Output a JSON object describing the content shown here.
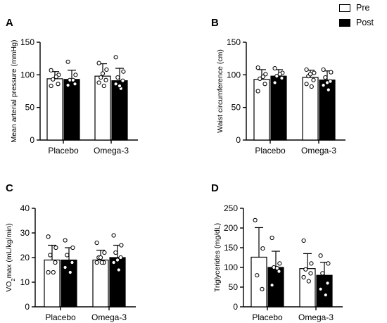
{
  "legend": {
    "pre": {
      "label": "Pre",
      "color": "#ffffff"
    },
    "post": {
      "label": "Post",
      "color": "#000000"
    }
  },
  "chart_data": [
    {
      "panel": "A",
      "type": "bar",
      "ylabel": "Mean arterial pressure (mmHg)",
      "ylim": [
        0,
        150
      ],
      "yticks": [
        0,
        50,
        100,
        150
      ],
      "categories": [
        "Placebo",
        "Omega-3"
      ],
      "series": [
        {
          "name": "Pre",
          "values": [
            94,
            98
          ],
          "sd": [
            11,
            19
          ],
          "points": [
            [
              107,
              100,
              93,
              86,
              83,
              97
            ],
            [
              118,
              108,
              96,
              92,
              88,
              83,
              102
            ]
          ]
        },
        {
          "name": "Post",
          "values": [
            93,
            91
          ],
          "sd": [
            14,
            19
          ],
          "points": [
            [
              120,
              100,
              92,
              86,
              84,
              92
            ],
            [
              127,
              105,
              96,
              91,
              86,
              79,
              83
            ]
          ]
        }
      ]
    },
    {
      "panel": "B",
      "type": "bar",
      "ylabel": "Waist circumference (cm)",
      "ylim": [
        0,
        150
      ],
      "yticks": [
        0,
        50,
        100,
        150
      ],
      "categories": [
        "Placebo",
        "Omega-3"
      ],
      "series": [
        {
          "name": "Pre",
          "values": [
            93,
            96
          ],
          "sd": [
            15,
            11
          ],
          "points": [
            [
              111,
              101,
              94,
              86,
              75,
              97
            ],
            [
              108,
              103,
              98,
              92,
              86,
              82,
              101
            ]
          ]
        },
        {
          "name": "Post",
          "values": [
            98,
            92
          ],
          "sd": [
            10,
            14
          ],
          "points": [
            [
              110,
              103,
              98,
              95,
              88,
              101
            ],
            [
              108,
              104,
              96,
              90,
              84,
              77,
              88
            ]
          ]
        }
      ]
    },
    {
      "panel": "C",
      "type": "bar",
      "ylabel": "VO2max (mL/kg/min)",
      "ylim": [
        0,
        40
      ],
      "yticks": [
        0,
        10,
        20,
        30,
        40
      ],
      "categories": [
        "Placebo",
        "Omega-3"
      ],
      "series": [
        {
          "name": "Pre",
          "values": [
            19,
            19
          ],
          "sd": [
            6,
            4
          ],
          "points": [
            [
              28.5,
              24,
              21,
              18,
              14,
              14
            ],
            [
              26,
              22,
              20,
              18,
              18,
              18,
              20
            ]
          ]
        },
        {
          "name": "Post",
          "values": [
            19,
            20
          ],
          "sd": [
            5,
            5
          ],
          "points": [
            [
              27,
              24,
              21,
              18,
              16,
              14
            ],
            [
              29,
              25,
              22,
              20,
              18,
              15,
              19
            ]
          ]
        }
      ]
    },
    {
      "panel": "D",
      "type": "bar",
      "ylabel": "Triglycerides (mg/dL)",
      "ylim": [
        0,
        250
      ],
      "yticks": [
        0,
        50,
        100,
        150,
        200,
        250
      ],
      "categories": [
        "Placebo",
        "Omega-3"
      ],
      "series": [
        {
          "name": "Pre",
          "values": [
            126,
            97
          ],
          "sd": [
            75,
            38
          ],
          "points": [
            [
              220,
              148,
              80,
              45
            ],
            [
              168,
              110,
              95,
              85,
              75,
              65
            ]
          ]
        },
        {
          "name": "Post",
          "values": [
            100,
            80
          ],
          "sd": [
            41,
            33
          ],
          "points": [
            [
              175,
              110,
              100,
              90,
              55,
              98
            ],
            [
              130,
              110,
              85,
              60,
              45,
              30
            ]
          ]
        }
      ]
    }
  ]
}
